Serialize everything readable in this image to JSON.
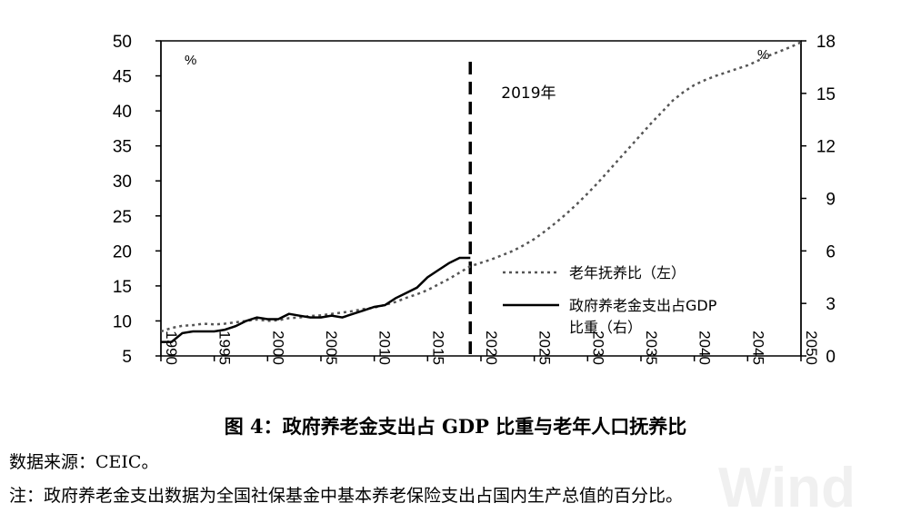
{
  "chart_data": {
    "type": "line",
    "x_ticks": [
      "1990",
      "1995",
      "2000",
      "2005",
      "2010",
      "2015",
      "2020",
      "2025",
      "2030",
      "2035",
      "2040",
      "2045",
      "2050"
    ],
    "y_left": {
      "ticks": [
        "5",
        "10",
        "15",
        "20",
        "25",
        "30",
        "35",
        "40",
        "45",
        "50"
      ],
      "range": [
        5,
        50
      ],
      "unit": "%"
    },
    "y_right": {
      "ticks": [
        "0",
        "3",
        "6",
        "9",
        "12",
        "15",
        "18"
      ],
      "range": [
        0,
        18
      ],
      "unit": "%"
    },
    "annotation": {
      "x": 2019,
      "label": "2019年"
    },
    "legend_position": "right",
    "series": [
      {
        "name": "老年抚养比（左）",
        "axis": "left",
        "style": "dotted",
        "x": [
          1990,
          1991,
          1992,
          1993,
          1994,
          1995,
          1996,
          1997,
          1998,
          1999,
          2000,
          2001,
          2002,
          2003,
          2004,
          2005,
          2006,
          2007,
          2008,
          2009,
          2010,
          2011,
          2012,
          2013,
          2014,
          2015,
          2016,
          2017,
          2018,
          2019,
          2020,
          2021,
          2022,
          2023,
          2024,
          2025,
          2026,
          2027,
          2028,
          2029,
          2030,
          2031,
          2032,
          2033,
          2034,
          2035,
          2036,
          2037,
          2038,
          2039,
          2040,
          2041,
          2042,
          2043,
          2044,
          2045,
          2046,
          2047,
          2048,
          2049,
          2050
        ],
        "y": [
          8.5,
          9.0,
          9.3,
          9.4,
          9.6,
          9.5,
          9.6,
          9.8,
          10.0,
          10.2,
          10.0,
          10.1,
          10.4,
          10.5,
          10.7,
          10.8,
          11.0,
          11.2,
          11.4,
          11.7,
          11.9,
          12.3,
          12.7,
          13.3,
          13.8,
          14.4,
          15.2,
          16.0,
          16.9,
          17.8,
          18.3,
          18.8,
          19.4,
          20.0,
          20.8,
          21.7,
          22.8,
          24.0,
          25.3,
          26.7,
          28.2,
          29.8,
          31.5,
          33.2,
          34.9,
          36.6,
          38.3,
          39.9,
          41.5,
          42.7,
          43.7,
          44.4,
          45.0,
          45.5,
          46.0,
          46.5,
          47.2,
          47.9,
          48.5,
          49.1,
          49.8
        ]
      },
      {
        "name": "政府养老金支出占GDP比重（右）",
        "axis": "right",
        "style": "solid",
        "x": [
          1990,
          1991,
          1992,
          1993,
          1994,
          1995,
          1996,
          1997,
          1998,
          1999,
          2000,
          2001,
          2002,
          2003,
          2004,
          2005,
          2006,
          2007,
          2008,
          2009,
          2010,
          2011,
          2012,
          2013,
          2014,
          2015,
          2016,
          2017,
          2018,
          2019
        ],
        "y": [
          0.8,
          0.8,
          1.3,
          1.4,
          1.4,
          1.4,
          1.5,
          1.7,
          2.0,
          2.2,
          2.1,
          2.1,
          2.4,
          2.3,
          2.2,
          2.2,
          2.3,
          2.2,
          2.4,
          2.6,
          2.8,
          2.9,
          3.3,
          3.6,
          3.9,
          4.5,
          4.9,
          5.3,
          5.6,
          5.6
        ]
      }
    ]
  },
  "caption": "图 4：政府养老金支出占 GDP 比重与老年人口抚养比",
  "source": "数据来源：CEIC。",
  "footnote": "注：政府养老金支出数据为全国社保基金中基本养老保险支出占国内生产总值的百分比。",
  "watermark": "Wind"
}
